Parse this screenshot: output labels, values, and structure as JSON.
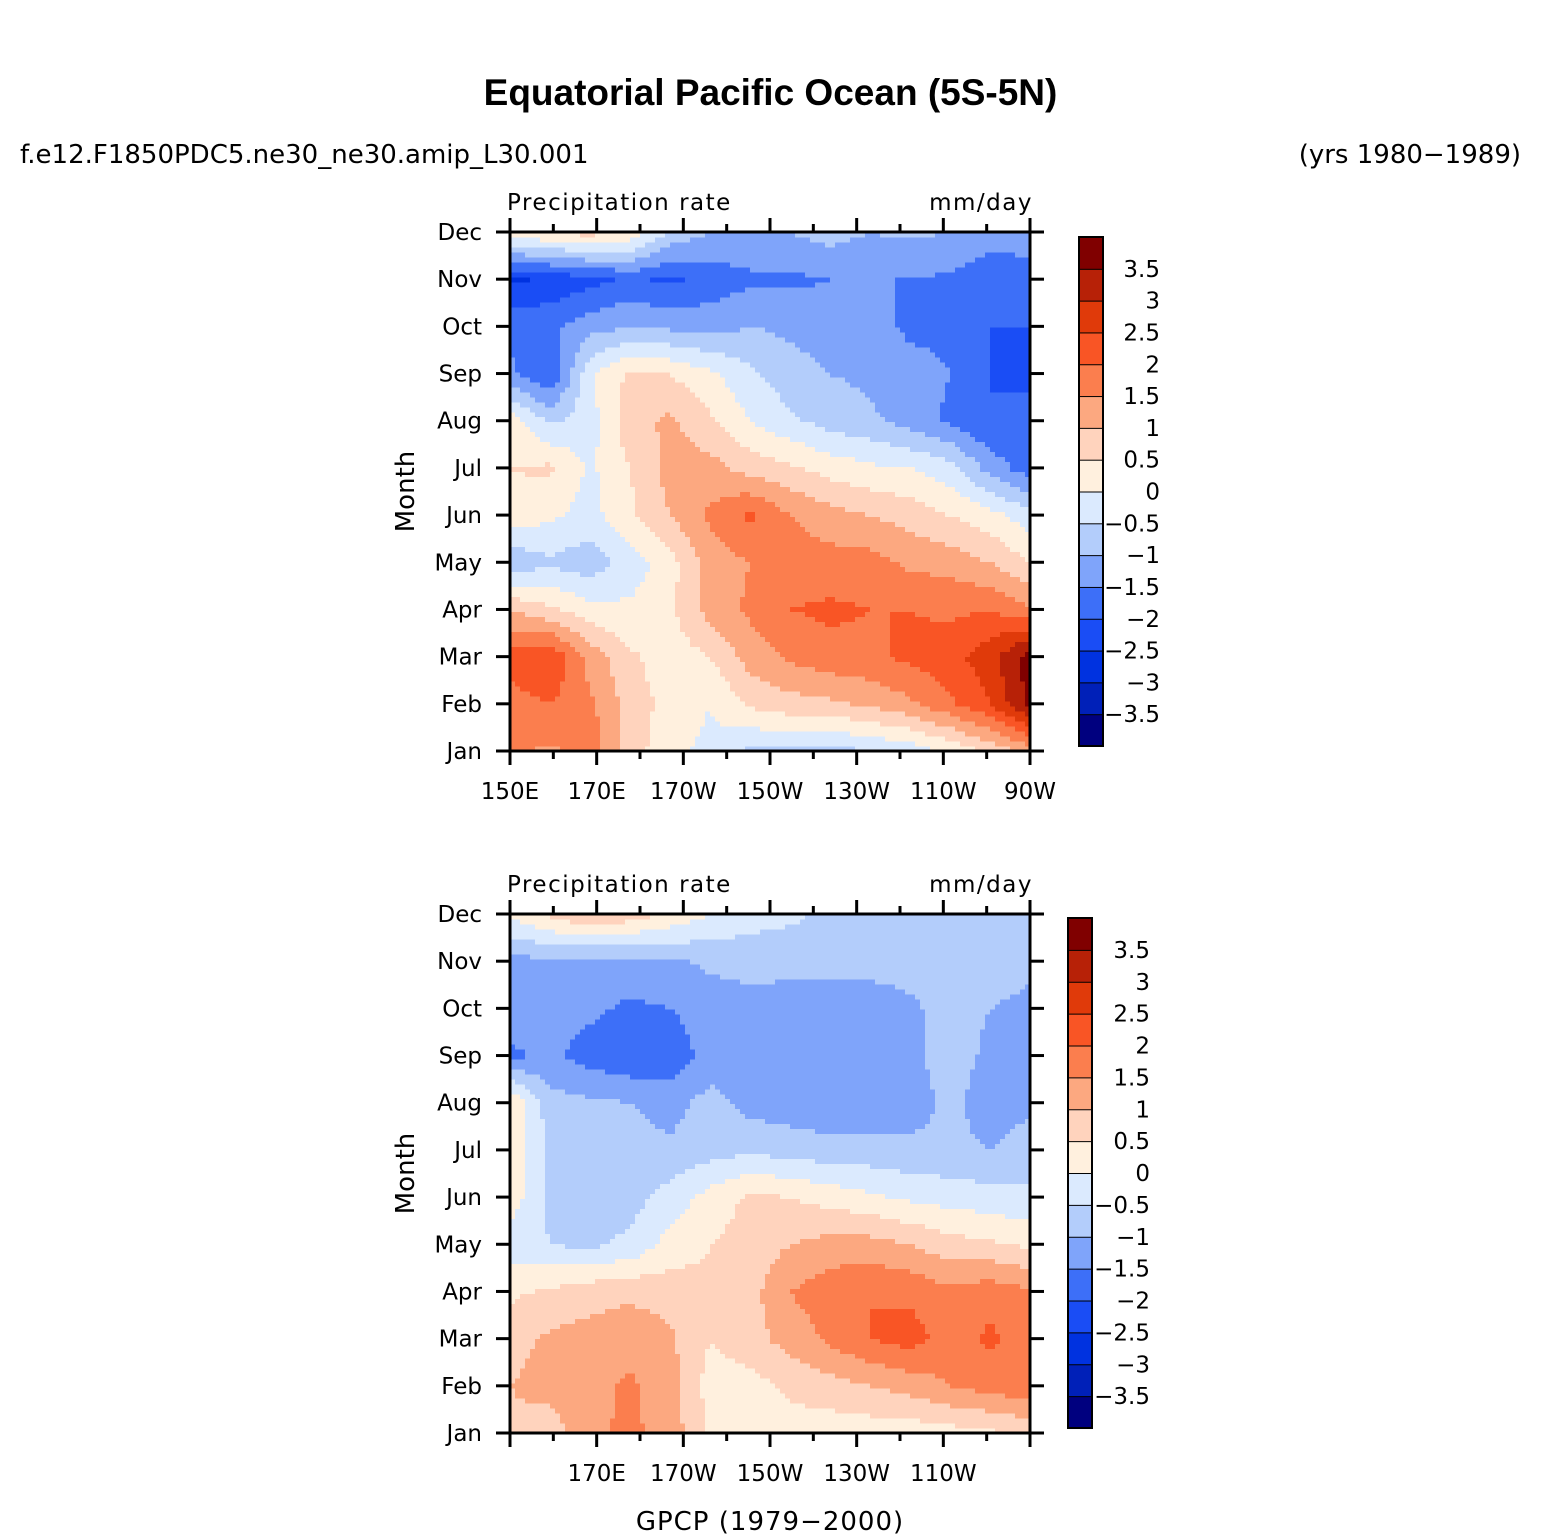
{
  "figure": {
    "title": "Equatorial Pacific Ocean (5S-5N)",
    "case_name": "f.e12.F1850PDC5.ne30_ne30.amip_L30.001",
    "years": "(yrs 1980−1989)",
    "colors": {
      "levels": [
        "#00007f",
        "#0020b8",
        "#0032e0",
        "#1a4df5",
        "#3d6ff8",
        "#7fa4fa",
        "#b3cdfb",
        "#dbeafe",
        "#fff0de",
        "#ffd3bd",
        "#fca880",
        "#fb7e4e",
        "#f95525",
        "#e03a0a",
        "#b72107",
        "#800000"
      ],
      "background": "#ffffff"
    }
  },
  "chart_data": [
    {
      "type": "contour",
      "title": "",
      "left_string": "Precipitation rate",
      "right_string": "mm/day",
      "ylabel": "Month",
      "x_tick_labels": [
        "150E",
        "170E",
        "170W",
        "150W",
        "130W",
        "110W",
        "90W"
      ],
      "x_values": [
        150,
        170,
        190,
        210,
        230,
        250,
        270
      ],
      "months": [
        "Jan",
        "Feb",
        "Mar",
        "Apr",
        "May",
        "Jun",
        "Jul",
        "Aug",
        "Sep",
        "Oct",
        "Nov",
        "Dec"
      ],
      "xlim": [
        150,
        270
      ],
      "colorbar_labels": [
        "−3.5",
        "−3",
        "−2.5",
        "−2",
        "−1.5",
        "−1",
        "−0.5",
        "0",
        "0.5",
        "1",
        "1.5",
        "2",
        "2.5",
        "3",
        "3.5"
      ],
      "levels": [
        -3.5,
        -3,
        -2.5,
        -2,
        -1.5,
        -1,
        -0.5,
        0,
        0.5,
        1,
        1.5,
        2,
        2.5,
        3,
        3.5
      ],
      "z_units": "mm/day",
      "z": [
        [
          1.6,
          1.4,
          1.8,
          0.8,
          0.1,
          -0.1,
          -0.6,
          -0.6,
          -0.7,
          -0.5,
          -0.3,
          0.1,
          0.6,
          1.2
        ],
        [
          1.8,
          2.0,
          1.6,
          0.8,
          0.3,
          0.0,
          0.6,
          0.8,
          0.9,
          1.1,
          1.4,
          1.9,
          2.5,
          3.6
        ],
        [
          2.2,
          2.5,
          1.3,
          0.6,
          0.2,
          0.5,
          1.2,
          1.6,
          1.8,
          1.9,
          2.1,
          2.3,
          2.8,
          3.8
        ],
        [
          1.0,
          0.6,
          0.2,
          0.1,
          0.4,
          1.2,
          1.6,
          2.0,
          2.1,
          2.0,
          2.0,
          1.9,
          2.0,
          1.6
        ],
        [
          -0.9,
          -0.6,
          -0.8,
          -0.3,
          0.3,
          1.2,
          1.5,
          1.8,
          1.7,
          1.7,
          1.4,
          1.3,
          1.0,
          0.5
        ],
        [
          0.3,
          0.1,
          -0.2,
          0.4,
          1.0,
          1.6,
          2.1,
          1.5,
          1.2,
          1.0,
          0.8,
          0.5,
          0.2,
          -0.3
        ],
        [
          0.5,
          0.6,
          -0.1,
          0.5,
          1.2,
          1.2,
          0.8,
          0.6,
          0.3,
          0.1,
          0.0,
          -0.3,
          -1.2,
          -1.8
        ],
        [
          0.3,
          -0.6,
          -0.2,
          0.8,
          1.1,
          0.6,
          0.0,
          -0.4,
          -0.7,
          -0.9,
          -1.2,
          -1.6,
          -2.0,
          -1.8
        ],
        [
          -1.4,
          -2.0,
          -0.1,
          0.6,
          0.5,
          0.1,
          -0.4,
          -0.8,
          -1.0,
          -1.1,
          -1.3,
          -1.5,
          -2.0,
          -2.1
        ],
        [
          -1.6,
          -1.6,
          -1.2,
          -1.0,
          -1.1,
          -1.2,
          -1.0,
          -1.1,
          -1.2,
          -1.3,
          -1.6,
          -1.6,
          -2.0,
          -2.0
        ],
        [
          -2.6,
          -2.4,
          -2.2,
          -1.9,
          -2.1,
          -1.8,
          -1.6,
          -1.6,
          -1.5,
          -1.5,
          -1.5,
          -1.6,
          -1.9,
          -1.9
        ],
        [
          0.3,
          0.5,
          0.7,
          0.4,
          -0.6,
          -1.0,
          -1.1,
          -1.0,
          -0.8,
          -1.0,
          -0.9,
          -1.0,
          -1.2,
          -1.1
        ]
      ]
    },
    {
      "type": "contour",
      "title": "GPCP (1979−2000)",
      "left_string": "Precipitation rate",
      "right_string": "mm/day",
      "ylabel": "Month",
      "x_tick_labels": [
        "170E",
        "170W",
        "150W",
        "130W",
        "110W"
      ],
      "x_values": [
        170,
        190,
        210,
        230,
        250
      ],
      "months": [
        "Jan",
        "Feb",
        "Mar",
        "Apr",
        "May",
        "Jun",
        "Jul",
        "Aug",
        "Sep",
        "Oct",
        "Nov",
        "Dec"
      ],
      "xlim": [
        150,
        270
      ],
      "colorbar_labels": [
        "−3.5",
        "−3",
        "−2.5",
        "−2",
        "−1.5",
        "−1",
        "−0.5",
        "0",
        "0.5",
        "1",
        "1.5",
        "2",
        "2.5",
        "3",
        "3.5"
      ],
      "levels": [
        -3.5,
        -3,
        -2.5,
        -2,
        -1.5,
        -1,
        -0.5,
        0,
        0.5,
        1,
        1.5,
        2,
        2.5,
        3,
        3.5
      ],
      "z_units": "mm/day",
      "z": [
        [
          0.9,
          0.7,
          1.4,
          1.6,
          1.3,
          0.4,
          0.2,
          0.3,
          0.2,
          0.2,
          0.2,
          0.3,
          0.4,
          0.6
        ],
        [
          1.0,
          1.2,
          1.3,
          1.6,
          1.2,
          0.3,
          0.3,
          0.6,
          0.8,
          1.0,
          1.2,
          1.5,
          1.7,
          1.9
        ],
        [
          0.8,
          1.1,
          1.2,
          1.3,
          1.1,
          0.5,
          0.8,
          1.2,
          1.6,
          2.0,
          2.2,
          1.8,
          2.1,
          1.8
        ],
        [
          0.4,
          0.6,
          0.8,
          0.9,
          0.8,
          0.6,
          0.8,
          1.5,
          1.8,
          2.0,
          1.9,
          1.6,
          1.8,
          1.6
        ],
        [
          -0.3,
          -0.5,
          -0.6,
          -0.4,
          0.2,
          0.5,
          0.7,
          1.0,
          1.2,
          1.2,
          1.0,
          0.7,
          0.6,
          0.4
        ],
        [
          0.3,
          -0.6,
          -0.6,
          -0.7,
          -0.3,
          0.2,
          0.6,
          0.5,
          0.3,
          0.1,
          -0.1,
          -0.2,
          -0.3,
          -0.4
        ],
        [
          0.4,
          -0.6,
          -0.8,
          -0.8,
          -0.9,
          -0.7,
          -0.6,
          -0.7,
          -0.8,
          -0.8,
          -0.9,
          -0.9,
          -1.0,
          -0.8
        ],
        [
          0.6,
          -0.8,
          -0.9,
          -1.0,
          -1.2,
          -0.8,
          -1.2,
          -1.3,
          -1.4,
          -1.3,
          -1.2,
          -0.9,
          -1.2,
          -1.1
        ],
        [
          -1.6,
          -1.4,
          -1.7,
          -1.9,
          -1.8,
          -1.3,
          -1.3,
          -1.3,
          -1.3,
          -1.2,
          -1.1,
          -0.8,
          -1.1,
          -1.2
        ],
        [
          -1.2,
          -1.3,
          -1.4,
          -1.6,
          -1.5,
          -1.3,
          -1.2,
          -1.3,
          -1.3,
          -1.3,
          -1.1,
          -0.8,
          -1.0,
          -1.1
        ],
        [
          -1.2,
          -1.1,
          -1.2,
          -1.2,
          -1.1,
          -0.9,
          -0.8,
          -0.8,
          -0.8,
          -0.8,
          -0.8,
          -0.8,
          -0.8,
          -0.9
        ],
        [
          0.1,
          0.6,
          1.0,
          0.8,
          0.4,
          0.0,
          -0.3,
          -0.4,
          -0.6,
          -0.7,
          -0.7,
          -0.8,
          -0.8,
          -0.8
        ]
      ]
    }
  ]
}
